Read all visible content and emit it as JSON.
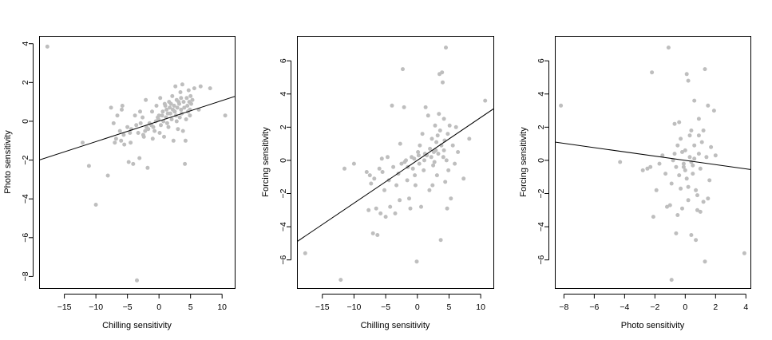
{
  "chart_data": [
    {
      "type": "scatter",
      "xlabel": "Chilling sensitivity",
      "ylabel": "Photo sensitivity",
      "xlim": [
        -19,
        12
      ],
      "ylim": [
        -8.6,
        4.4
      ],
      "xticks": [
        -15,
        -10,
        -5,
        0,
        5,
        10
      ],
      "yticks": [
        -8,
        -6,
        -4,
        -2,
        0,
        2,
        4
      ],
      "point_color": "#bebebe",
      "line_color": "#000000",
      "fit_line": [
        [
          -19,
          -2.0
        ],
        [
          12,
          1.28
        ]
      ],
      "points": [
        [
          -17.7,
          3.85
        ],
        [
          -12.1,
          -1.1
        ],
        [
          -11.1,
          -2.3
        ],
        [
          -10.0,
          -4.3
        ],
        [
          -8.1,
          -2.8
        ],
        [
          -7.6,
          0.7
        ],
        [
          -7.2,
          -0.1
        ],
        [
          -7.0,
          -1.1
        ],
        [
          -6.8,
          -0.9
        ],
        [
          -6.6,
          0.3
        ],
        [
          -6.2,
          -0.5
        ],
        [
          -5.9,
          0.6
        ],
        [
          -5.8,
          0.8
        ],
        [
          -5.6,
          -0.7
        ],
        [
          -5.5,
          -1.2
        ],
        [
          -5.0,
          -0.3
        ],
        [
          -4.8,
          -2.1
        ],
        [
          -4.6,
          -0.6
        ],
        [
          -4.4,
          -0.4
        ],
        [
          -4.1,
          -2.2
        ],
        [
          -3.8,
          0.3
        ],
        [
          -3.6,
          -0.2
        ],
        [
          -3.5,
          -8.2
        ],
        [
          -3.3,
          -0.6
        ],
        [
          -3.1,
          -1.9
        ],
        [
          -2.9,
          -0.1
        ],
        [
          -2.6,
          0.2
        ],
        [
          -2.4,
          -0.8
        ],
        [
          -2.2,
          -0.5
        ],
        [
          -2.1,
          1.1
        ],
        [
          -2.0,
          -0.3
        ],
        [
          -1.8,
          -2.4
        ],
        [
          -1.7,
          -0.4
        ],
        [
          -1.5,
          -0.1
        ],
        [
          -1.2,
          -0.2
        ],
        [
          -1.1,
          0.5
        ],
        [
          -0.9,
          -0.3
        ],
        [
          -0.7,
          -0.5
        ],
        [
          -0.5,
          0.0
        ],
        [
          -0.4,
          0.8
        ],
        [
          -0.2,
          0.2
        ],
        [
          -0.1,
          0.1
        ],
        [
          0.1,
          -0.6
        ],
        [
          0.2,
          1.2
        ],
        [
          0.3,
          -0.2
        ],
        [
          0.5,
          0.3
        ],
        [
          0.6,
          0.5
        ],
        [
          0.8,
          -0.8
        ],
        [
          0.9,
          0.9
        ],
        [
          1.1,
          0.2
        ],
        [
          1.2,
          0.6
        ],
        [
          1.3,
          -0.1
        ],
        [
          1.4,
          0.4
        ],
        [
          1.6,
          1.0
        ],
        [
          1.7,
          0.7
        ],
        [
          1.8,
          0.4
        ],
        [
          1.9,
          0.9
        ],
        [
          2.0,
          0.1
        ],
        [
          2.1,
          1.3
        ],
        [
          2.2,
          0.6
        ],
        [
          2.3,
          -1.0
        ],
        [
          2.4,
          0.8
        ],
        [
          2.5,
          0.5
        ],
        [
          2.6,
          1.8
        ],
        [
          2.7,
          0.3
        ],
        [
          2.8,
          1.1
        ],
        [
          2.9,
          0.7
        ],
        [
          3.0,
          -0.4
        ],
        [
          3.1,
          1.0
        ],
        [
          3.2,
          0.9
        ],
        [
          3.3,
          0.2
        ],
        [
          3.4,
          1.5
        ],
        [
          3.5,
          0.6
        ],
        [
          3.6,
          0.4
        ],
        [
          3.7,
          1.9
        ],
        [
          3.8,
          -0.5
        ],
        [
          3.9,
          1.0
        ],
        [
          4.0,
          0.7
        ],
        [
          4.1,
          -2.2
        ],
        [
          4.2,
          -1.0
        ],
        [
          4.3,
          0.1
        ],
        [
          4.4,
          1.2
        ],
        [
          4.5,
          0.8
        ],
        [
          4.6,
          0.5
        ],
        [
          4.7,
          1.6
        ],
        [
          4.8,
          1.0
        ],
        [
          4.9,
          0.6
        ],
        [
          5.0,
          1.3
        ],
        [
          5.1,
          0.9
        ],
        [
          5.3,
          1.1
        ],
        [
          5.6,
          1.7
        ],
        [
          6.3,
          0.6
        ],
        [
          6.6,
          1.8
        ],
        [
          8.1,
          1.7
        ],
        [
          10.5,
          0.3
        ],
        [
          -3.0,
          0.5
        ],
        [
          -1.0,
          -0.9
        ],
        [
          0.7,
          0.0
        ],
        [
          1.5,
          -0.3
        ],
        [
          -4.5,
          -1.1
        ],
        [
          -6.0,
          -1.0
        ],
        [
          0.0,
          0.3
        ],
        [
          3.5,
          1.2
        ],
        [
          2.8,
          0.0
        ],
        [
          4.9,
          0.3
        ],
        [
          -2.5,
          -0.7
        ],
        [
          1.0,
          0.8
        ]
      ]
    },
    {
      "type": "scatter",
      "xlabel": "Chilling sensitivity",
      "ylabel": "Forcing sensitivity",
      "xlim": [
        -19,
        12
      ],
      "ylim": [
        -7.7,
        7.5
      ],
      "xticks": [
        -15,
        -10,
        -5,
        0,
        5,
        10
      ],
      "yticks": [
        -6,
        -4,
        -2,
        0,
        2,
        4,
        6
      ],
      "point_color": "#bebebe",
      "line_color": "#000000",
      "fit_line": [
        [
          -19,
          -4.9
        ],
        [
          12,
          3.1
        ]
      ],
      "points": [
        [
          -17.7,
          -5.6
        ],
        [
          -12.1,
          -7.2
        ],
        [
          -11.5,
          -0.5
        ],
        [
          -10.0,
          -0.2
        ],
        [
          -8.0,
          -0.7
        ],
        [
          -7.7,
          -3.0
        ],
        [
          -7.5,
          -0.9
        ],
        [
          -7.3,
          -1.4
        ],
        [
          -7.0,
          -4.4
        ],
        [
          -6.8,
          -1.1
        ],
        [
          -6.5,
          -2.9
        ],
        [
          -6.3,
          -4.5
        ],
        [
          -6.0,
          -0.5
        ],
        [
          -5.8,
          -3.2
        ],
        [
          -5.5,
          -0.7
        ],
        [
          -5.2,
          -1.8
        ],
        [
          -5.0,
          -3.4
        ],
        [
          -4.7,
          0.2
        ],
        [
          -4.5,
          -1.2
        ],
        [
          -4.3,
          -2.8
        ],
        [
          -4.0,
          3.3
        ],
        [
          -3.8,
          -0.4
        ],
        [
          -3.5,
          -3.2
        ],
        [
          -3.3,
          -1.5
        ],
        [
          -3.0,
          -0.8
        ],
        [
          -2.8,
          -2.4
        ],
        [
          -2.5,
          -0.2
        ],
        [
          -2.3,
          5.5
        ],
        [
          -2.1,
          3.2
        ],
        [
          -2.0,
          -0.1
        ],
        [
          -1.8,
          0.0
        ],
        [
          -1.6,
          -1.2
        ],
        [
          -1.3,
          -2.3
        ],
        [
          -1.1,
          -2.9
        ],
        [
          -0.9,
          0.2
        ],
        [
          -0.7,
          -0.5
        ],
        [
          -0.5,
          0.1
        ],
        [
          -0.3,
          -1.5
        ],
        [
          -0.1,
          -6.1
        ],
        [
          0.1,
          0.5
        ],
        [
          0.3,
          -0.2
        ],
        [
          0.4,
          0.9
        ],
        [
          0.6,
          -2.8
        ],
        [
          0.8,
          1.6
        ],
        [
          1.0,
          -0.6
        ],
        [
          1.2,
          0.4
        ],
        [
          1.3,
          3.2
        ],
        [
          1.5,
          0.3
        ],
        [
          1.7,
          2.7
        ],
        [
          1.9,
          -1.8
        ],
        [
          2.0,
          0.7
        ],
        [
          2.2,
          0.2
        ],
        [
          2.3,
          1.3
        ],
        [
          2.5,
          -0.3
        ],
        [
          2.6,
          0.5
        ],
        [
          2.8,
          2.1
        ],
        [
          2.9,
          0.6
        ],
        [
          3.0,
          1.1
        ],
        [
          3.1,
          -0.9
        ],
        [
          3.3,
          0.4
        ],
        [
          3.4,
          2.8
        ],
        [
          3.5,
          5.2
        ],
        [
          3.6,
          1.8
        ],
        [
          3.7,
          -4.8
        ],
        [
          3.8,
          0.9
        ],
        [
          3.9,
          5.3
        ],
        [
          4.0,
          4.7
        ],
        [
          4.1,
          0.2
        ],
        [
          4.2,
          2.5
        ],
        [
          4.3,
          1.2
        ],
        [
          4.4,
          -1.3
        ],
        [
          4.5,
          6.8
        ],
        [
          4.6,
          0.0
        ],
        [
          4.7,
          -2.9
        ],
        [
          4.8,
          1.6
        ],
        [
          4.9,
          -0.6
        ],
        [
          5.1,
          2.1
        ],
        [
          5.3,
          -2.3
        ],
        [
          5.6,
          0.9
        ],
        [
          5.9,
          -0.2
        ],
        [
          6.1,
          2.0
        ],
        [
          6.4,
          0.5
        ],
        [
          7.3,
          -1.1
        ],
        [
          8.2,
          1.3
        ],
        [
          10.7,
          3.6
        ],
        [
          -2.7,
          1.0
        ],
        [
          -0.4,
          -0.9
        ],
        [
          1.1,
          0.0
        ],
        [
          2.4,
          -1.5
        ],
        [
          -5.6,
          0.1
        ],
        [
          3.2,
          1.5
        ],
        [
          0.2,
          0.3
        ],
        [
          -1.5,
          -0.4
        ],
        [
          4.2,
          0.6
        ],
        [
          2.7,
          -0.1
        ]
      ]
    },
    {
      "type": "scatter",
      "xlabel": "Photo sensitivity",
      "ylabel": "Forcing sensitivity",
      "xlim": [
        -8.6,
        4.3
      ],
      "ylim": [
        -7.7,
        7.5
      ],
      "xticks": [
        -8,
        -6,
        -4,
        -2,
        0,
        2,
        4
      ],
      "yticks": [
        -6,
        -4,
        -2,
        0,
        2,
        4,
        6
      ],
      "point_color": "#bebebe",
      "line_color": "#000000",
      "fit_line": [
        [
          -8.6,
          1.1
        ],
        [
          4.3,
          -0.55
        ]
      ],
      "points": [
        [
          -8.2,
          3.3
        ],
        [
          -4.3,
          -0.1
        ],
        [
          -2.8,
          -0.6
        ],
        [
          -2.5,
          -0.5
        ],
        [
          -2.3,
          -0.4
        ],
        [
          -2.2,
          5.3
        ],
        [
          -2.1,
          -3.4
        ],
        [
          -1.9,
          -1.8
        ],
        [
          -1.7,
          -0.2
        ],
        [
          -1.5,
          0.3
        ],
        [
          -1.3,
          -0.8
        ],
        [
          -1.2,
          -2.8
        ],
        [
          -1.1,
          6.8
        ],
        [
          -1.0,
          -2.7
        ],
        [
          -0.9,
          -7.2
        ],
        [
          -0.8,
          0.0
        ],
        [
          -0.7,
          2.2
        ],
        [
          -0.6,
          -0.4
        ],
        [
          -0.6,
          -4.4
        ],
        [
          -0.5,
          -3.3
        ],
        [
          -0.4,
          -0.9
        ],
        [
          -0.3,
          1.3
        ],
        [
          -0.2,
          0.5
        ],
        [
          -0.1,
          -0.2
        ],
        [
          0.0,
          0.6
        ],
        [
          0.1,
          -1.1
        ],
        [
          0.2,
          4.8
        ],
        [
          0.2,
          -2.4
        ],
        [
          0.3,
          0.2
        ],
        [
          0.4,
          -4.5
        ],
        [
          0.4,
          1.8
        ],
        [
          0.5,
          -0.3
        ],
        [
          0.6,
          0.9
        ],
        [
          0.6,
          3.6
        ],
        [
          0.7,
          -4.8
        ],
        [
          0.8,
          -3.0
        ],
        [
          0.9,
          0.4
        ],
        [
          0.9,
          2.5
        ],
        [
          1.0,
          -0.5
        ],
        [
          1.1,
          1.1
        ],
        [
          1.2,
          -2.5
        ],
        [
          1.3,
          5.5
        ],
        [
          1.3,
          -6.1
        ],
        [
          1.4,
          0.2
        ],
        [
          1.5,
          3.3
        ],
        [
          1.6,
          -1.2
        ],
        [
          1.7,
          0.8
        ],
        [
          1.9,
          3.0
        ],
        [
          2.0,
          0.3
        ],
        [
          3.9,
          -5.6
        ],
        [
          -0.3,
          -1.7
        ],
        [
          0.0,
          -0.6
        ],
        [
          0.3,
          1.5
        ],
        [
          0.7,
          -1.8
        ],
        [
          -0.5,
          0.9
        ],
        [
          0.8,
          -2.1
        ],
        [
          1.2,
          1.8
        ],
        [
          -0.9,
          -1.4
        ],
        [
          0.5,
          -0.8
        ],
        [
          -0.1,
          -0.4
        ],
        [
          0.6,
          0.1
        ],
        [
          -0.4,
          2.3
        ],
        [
          0.2,
          -1.6
        ],
        [
          1.0,
          -3.1
        ],
        [
          -0.7,
          0.4
        ],
        [
          0.1,
          5.2
        ],
        [
          0.4,
          -0.1
        ],
        [
          0.9,
          1.5
        ],
        [
          -0.2,
          -2.9
        ],
        [
          1.5,
          -2.3
        ]
      ]
    }
  ]
}
